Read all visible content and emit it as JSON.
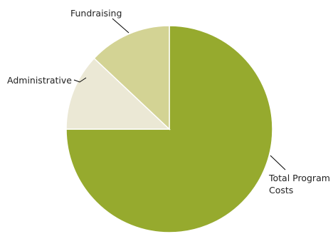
{
  "chart_data": {
    "type": "pie",
    "title": "",
    "slices": [
      {
        "label": "Total Program Costs",
        "label_lines": [
          "Total Program",
          "Costs"
        ],
        "value": 75,
        "color": "#96aa2e"
      },
      {
        "label": "Administrative",
        "label_lines": [
          "Administrative"
        ],
        "value": 12,
        "color": "#ebe8d5"
      },
      {
        "label": "Fundraising",
        "label_lines": [
          "Fundraising"
        ],
        "value": 13,
        "color": "#d3d394"
      }
    ],
    "start": "top",
    "direction": "clockwise",
    "legend": "none"
  }
}
